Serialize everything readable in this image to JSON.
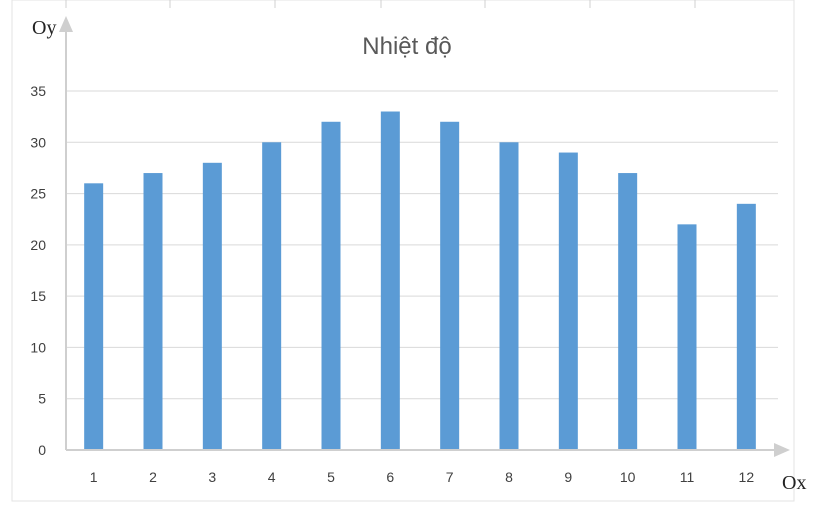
{
  "chart_data": {
    "type": "bar",
    "title": "Nhiệt độ",
    "xlabel": "Ox",
    "ylabel": "Oy",
    "categories": [
      "1",
      "2",
      "3",
      "4",
      "5",
      "6",
      "7",
      "8",
      "9",
      "10",
      "11",
      "12"
    ],
    "values": [
      26,
      27,
      28,
      30,
      32,
      33,
      32,
      30,
      29,
      27,
      22,
      24
    ],
    "ylim": [
      0,
      35
    ],
    "yticks": [
      0,
      5,
      10,
      15,
      20,
      25,
      30,
      35
    ],
    "grid": true,
    "colors": {
      "bar": "#5b9bd5",
      "grid": "#d9d9d9",
      "axis": "#cfcfcf",
      "text": "#404040",
      "title": "#595959"
    }
  }
}
